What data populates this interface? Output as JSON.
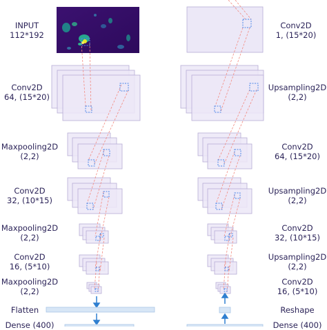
{
  "colors": {
    "label_text": "#2b2358",
    "layer_fill": "#ece8f7",
    "layer_stroke": "#b7acd6",
    "receptive_field": "#4a86e8",
    "projection_line": "#f28b82",
    "flatten_bar_fill": "#d7e6f6",
    "flatten_bar_stroke": "#aac6e6",
    "arrow": "#2f7fd0",
    "input_background": "#3b1170"
  },
  "encoder": {
    "labels": [
      {
        "line1": "INPUT",
        "line2": "112*192"
      },
      {
        "line1": "Conv2D",
        "line2": "64, (15*20)"
      },
      {
        "line1": "Maxpooling2D",
        "line2": "(2,2)"
      },
      {
        "line1": "Conv2D",
        "line2": "32, (10*15)"
      },
      {
        "line1": "Maxpooling2D",
        "line2": "(2,2)"
      },
      {
        "line1": "Conv2D",
        "line2": "16, (5*10)"
      },
      {
        "line1": "Maxpooling2D",
        "line2": "(2,2)"
      },
      {
        "line1": "Flatten",
        "line2": ""
      },
      {
        "line1": "Dense (400)",
        "line2": ""
      }
    ]
  },
  "decoder": {
    "labels": [
      {
        "line1": "Conv2D",
        "line2": "1, (15*20)"
      },
      {
        "line1": "Upsampling2D",
        "line2": "(2,2)"
      },
      {
        "line1": "Conv2D",
        "line2": "64, (15*20)"
      },
      {
        "line1": "Upsampling2D",
        "line2": "(2,2)"
      },
      {
        "line1": "Conv2D",
        "line2": "32, (10*15)"
      },
      {
        "line1": "Upsampling2D",
        "line2": "(2,2)"
      },
      {
        "line1": "Conv2D",
        "line2": "16, (5*10)"
      },
      {
        "line1": "Reshape",
        "line2": ""
      },
      {
        "line1": "Dense (400)",
        "line2": ""
      }
    ]
  }
}
